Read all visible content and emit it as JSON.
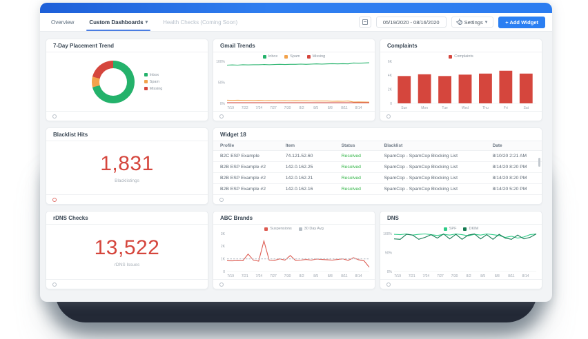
{
  "nav": {
    "tabs": [
      {
        "label": "Overview",
        "active": false
      },
      {
        "label": "Custom Dashboards",
        "active": true
      },
      {
        "label": "Health Checks (Coming Soon)",
        "active": false
      }
    ],
    "date_range": "05/19/2020 - 08/16/2020",
    "settings_label": "Settings",
    "add_widget_label": "+ Add Widget"
  },
  "colors": {
    "accent_blue": "#2b7ff2",
    "green": "#24b26b",
    "dark_green": "#157a52",
    "orange": "#f2a24b",
    "red": "#d5463d",
    "gray_avg": "#b7bfc7"
  },
  "widgets": {
    "placement_trend": {
      "title": "7-Day Placement Trend",
      "chart": {
        "type": "donut",
        "slices": [
          {
            "label": "Inbox",
            "value": 71,
            "color": "#24b26b"
          },
          {
            "label": "Spam",
            "value": 8,
            "color": "#f2a24b"
          },
          {
            "label": "Missing",
            "value": 21,
            "color": "#d5463d"
          }
        ],
        "legend": [
          {
            "label": "Inbox",
            "color": "#24b26b"
          },
          {
            "label": "Spam",
            "color": "#f2a24b"
          },
          {
            "label": "Missing",
            "color": "#d5463d"
          }
        ]
      }
    },
    "gmail_trends": {
      "title": "Gmail Trends",
      "chart": {
        "type": "line",
        "x": [
          "7/19",
          "7/22",
          "7/24",
          "7/27",
          "7/30",
          "8/2",
          "8/5",
          "8/8",
          "8/11",
          "8/14"
        ],
        "ylim": [
          0,
          100
        ],
        "yticks": [
          {
            "v": 0,
            "l": "0%"
          },
          {
            "v": 50,
            "l": "50%"
          },
          {
            "v": 100,
            "l": "100%"
          }
        ],
        "series": [
          {
            "name": "Inbox",
            "color": "#24b26b",
            "values": [
              91,
              91.5,
              91,
              92,
              91.5,
              92,
              92,
              92.5,
              92,
              92.5,
              93,
              92.5,
              93,
              93,
              93.5,
              93,
              93.5,
              94,
              93.5,
              94,
              94.5,
              94,
              94.5,
              94,
              96,
              95.5,
              96,
              96.5
            ]
          },
          {
            "name": "Spam",
            "color": "#f2a24b",
            "values": [
              7.5,
              7,
              7.5,
              7,
              7,
              6.8,
              7,
              6.5,
              6.8,
              6.5,
              6.2,
              6.5,
              6,
              6.2,
              6,
              6,
              5.8,
              5.5,
              5.8,
              5.5,
              5,
              5.2,
              5,
              5.5,
              3.2,
              3.5,
              3.2,
              3
            ]
          },
          {
            "name": "Missing",
            "color": "#d5463d",
            "values": [
              1.5,
              1.5,
              1.5,
              1.5,
              1.5,
              1.5,
              1.5,
              1.5,
              1.5,
              1.5,
              1.5,
              1.5,
              1.5,
              1.5,
              1.5,
              1.5,
              1.5,
              1.5,
              1.5,
              1.5,
              1.5,
              1.5,
              1.5,
              1.5,
              1.5,
              1.5,
              1.5,
              1.5
            ]
          }
        ],
        "legend": [
          {
            "label": "Inbox",
            "color": "#24b26b"
          },
          {
            "label": "Spam",
            "color": "#f2a24b"
          },
          {
            "label": "Missing",
            "color": "#d5463d"
          }
        ]
      }
    },
    "complaints": {
      "title": "Complaints",
      "chart": {
        "type": "bar",
        "categories": [
          "Sun",
          "Mon",
          "Tue",
          "Wed",
          "Thu",
          "Fri",
          "Sat"
        ],
        "values": [
          3900,
          4150,
          3900,
          4100,
          4250,
          4650,
          4250
        ],
        "bar_color": "#d5463d",
        "ylim": [
          0,
          6000
        ],
        "yticks": [
          {
            "v": 0,
            "l": "0"
          },
          {
            "v": 2000,
            "l": "2K"
          },
          {
            "v": 4000,
            "l": "4K"
          },
          {
            "v": 6000,
            "l": "6K"
          }
        ],
        "legend": [
          {
            "label": "Complaints",
            "color": "#d5463d"
          }
        ]
      }
    },
    "blacklist_hits": {
      "title": "Blacklist Hits",
      "value": "1,831",
      "subtitle": "Blacklistings"
    },
    "widget18": {
      "title": "Widget 18",
      "columns": [
        "Profile",
        "Item",
        "Status",
        "Blacklist",
        "Date"
      ],
      "rows": [
        {
          "profile": "B2C ESP Example",
          "item": "74.121.52.60",
          "status": "Resolved",
          "blacklist": "SpamCop - SpamCop Blocking List",
          "date": "8/10/20 2:21 AM"
        },
        {
          "profile": "B2B ESP Example #2",
          "item": "142.0.162.25",
          "status": "Resolved",
          "blacklist": "SpamCop - SpamCop Blocking List",
          "date": "8/14/20 8:20 PM"
        },
        {
          "profile": "B2B ESP Example #2",
          "item": "142.0.162.21",
          "status": "Resolved",
          "blacklist": "SpamCop - SpamCop Blocking List",
          "date": "8/14/20 8:20 PM"
        },
        {
          "profile": "B2B ESP Example #2",
          "item": "142.0.162.16",
          "status": "Resolved",
          "blacklist": "SpamCop - SpamCop Blocking List",
          "date": "8/14/20 5:20 PM"
        }
      ]
    },
    "rdns_checks": {
      "title": "rDNS Checks",
      "value": "13,522",
      "subtitle": "rDNS Issues"
    },
    "abc_brands": {
      "title": "ABC Brands",
      "chart": {
        "type": "line",
        "x": [
          "7/19",
          "7/21",
          "7/24",
          "7/27",
          "7/30",
          "8/2",
          "8/5",
          "8/8",
          "8/11",
          "8/14"
        ],
        "ylim": [
          0,
          3000
        ],
        "yticks": [
          {
            "v": 0,
            "l": "0"
          },
          {
            "v": 1000,
            "l": "1K"
          },
          {
            "v": 2000,
            "l": "2K"
          },
          {
            "v": 3000,
            "l": "3K"
          }
        ],
        "series": [
          {
            "name": "Suspensions",
            "color": "#dd5a50",
            "values": [
              850,
              840,
              860,
              850,
              1380,
              900,
              820,
              2420,
              900,
              880,
              1000,
              900,
              1260,
              880,
              900,
              950,
              900,
              980,
              950,
              920,
              900,
              950,
              1000,
              880,
              1090,
              920,
              850,
              340
            ]
          },
          {
            "name": "30 Day Avg",
            "color": "#b7bfc7",
            "dash": true,
            "values": [
              1000,
              1000,
              1000,
              1000,
              1000,
              1000,
              1000,
              1000,
              1000,
              1000,
              1000,
              1000,
              1000,
              1000,
              1000,
              1000,
              1000,
              1000,
              1000,
              1000,
              1000,
              1000,
              1000,
              1000,
              1000,
              1000,
              1000,
              1000
            ]
          }
        ],
        "legend": [
          {
            "label": "Suspensions",
            "color": "#dd5a50"
          },
          {
            "label": "30 Day Avg",
            "color": "#b7bfc7"
          }
        ]
      }
    },
    "dns": {
      "title": "DNS",
      "chart": {
        "type": "line",
        "x": [
          "7/19",
          "7/21",
          "7/24",
          "7/27",
          "7/30",
          "8/2",
          "8/5",
          "8/8",
          "8/11",
          "8/14"
        ],
        "ylim": [
          0,
          100
        ],
        "yticks": [
          {
            "v": 0,
            "l": "0%"
          },
          {
            "v": 50,
            "l": "50%"
          },
          {
            "v": 100,
            "l": "100%"
          }
        ],
        "series": [
          {
            "name": "SPF",
            "color": "#2ecc87",
            "values": [
              98,
              97,
              99,
              96,
              98,
              99,
              97,
              95,
              98,
              96,
              99,
              97,
              94,
              98,
              96,
              99,
              97,
              95,
              90,
              93,
              88,
              91,
              97,
              99
            ]
          },
          {
            "name": "DKIM",
            "color": "#157a52",
            "values": [
              86,
              85,
              98,
              96,
              85,
              90,
              97,
              88,
              99,
              86,
              98,
              85,
              96,
              99,
              86,
              97,
              85,
              98,
              88,
              85,
              96,
              86,
              90,
              99
            ]
          }
        ],
        "legend": [
          {
            "label": "SPF",
            "color": "#2ecc87"
          },
          {
            "label": "DKIM",
            "color": "#157a52"
          }
        ]
      }
    }
  }
}
